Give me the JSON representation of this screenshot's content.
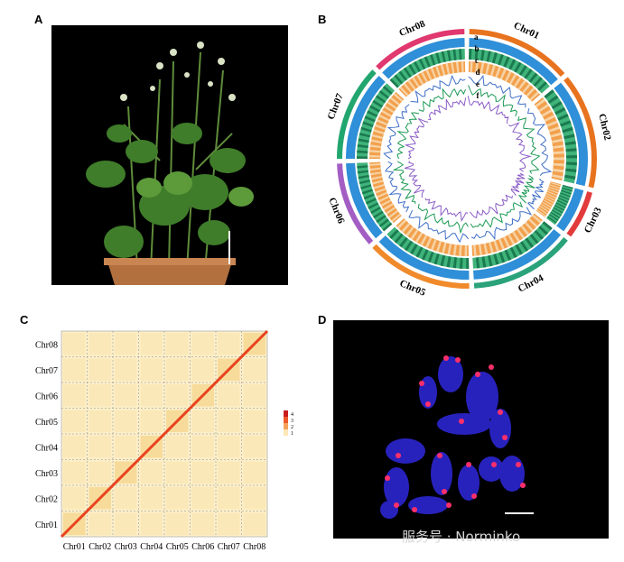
{
  "panels": {
    "a": {
      "label": "A"
    },
    "b": {
      "label": "B",
      "tracks": [
        "a",
        "b",
        "c",
        "d",
        "e",
        "f"
      ],
      "chromosomes": [
        {
          "name": "Chr01",
          "length": 55,
          "color": "#e8731f"
        },
        {
          "name": "Chr02",
          "length": 60,
          "color": "#e8731f"
        },
        {
          "name": "Chr03",
          "length": 25,
          "color": "#e23b3b"
        },
        {
          "name": "Chr04",
          "length": 55,
          "color": "#2aa37a"
        },
        {
          "name": "Chr05",
          "length": 55,
          "color": "#f08a2a"
        },
        {
          "name": "Chr06",
          "length": 45,
          "color": "#a35ec4"
        },
        {
          "name": "Chr07",
          "length": 50,
          "color": "#22a66f"
        },
        {
          "name": "Chr08",
          "length": 50,
          "color": "#e0386f"
        }
      ]
    },
    "c": {
      "label": "C",
      "axis_labels": [
        "Chr01",
        "Chr02",
        "Chr03",
        "Chr04",
        "Chr05",
        "Chr06",
        "Chr07",
        "Chr08"
      ],
      "legend": [
        "4",
        "3",
        "2",
        "1"
      ]
    },
    "d": {
      "label": "D"
    }
  },
  "watermark": "服务号 · Norminko"
}
